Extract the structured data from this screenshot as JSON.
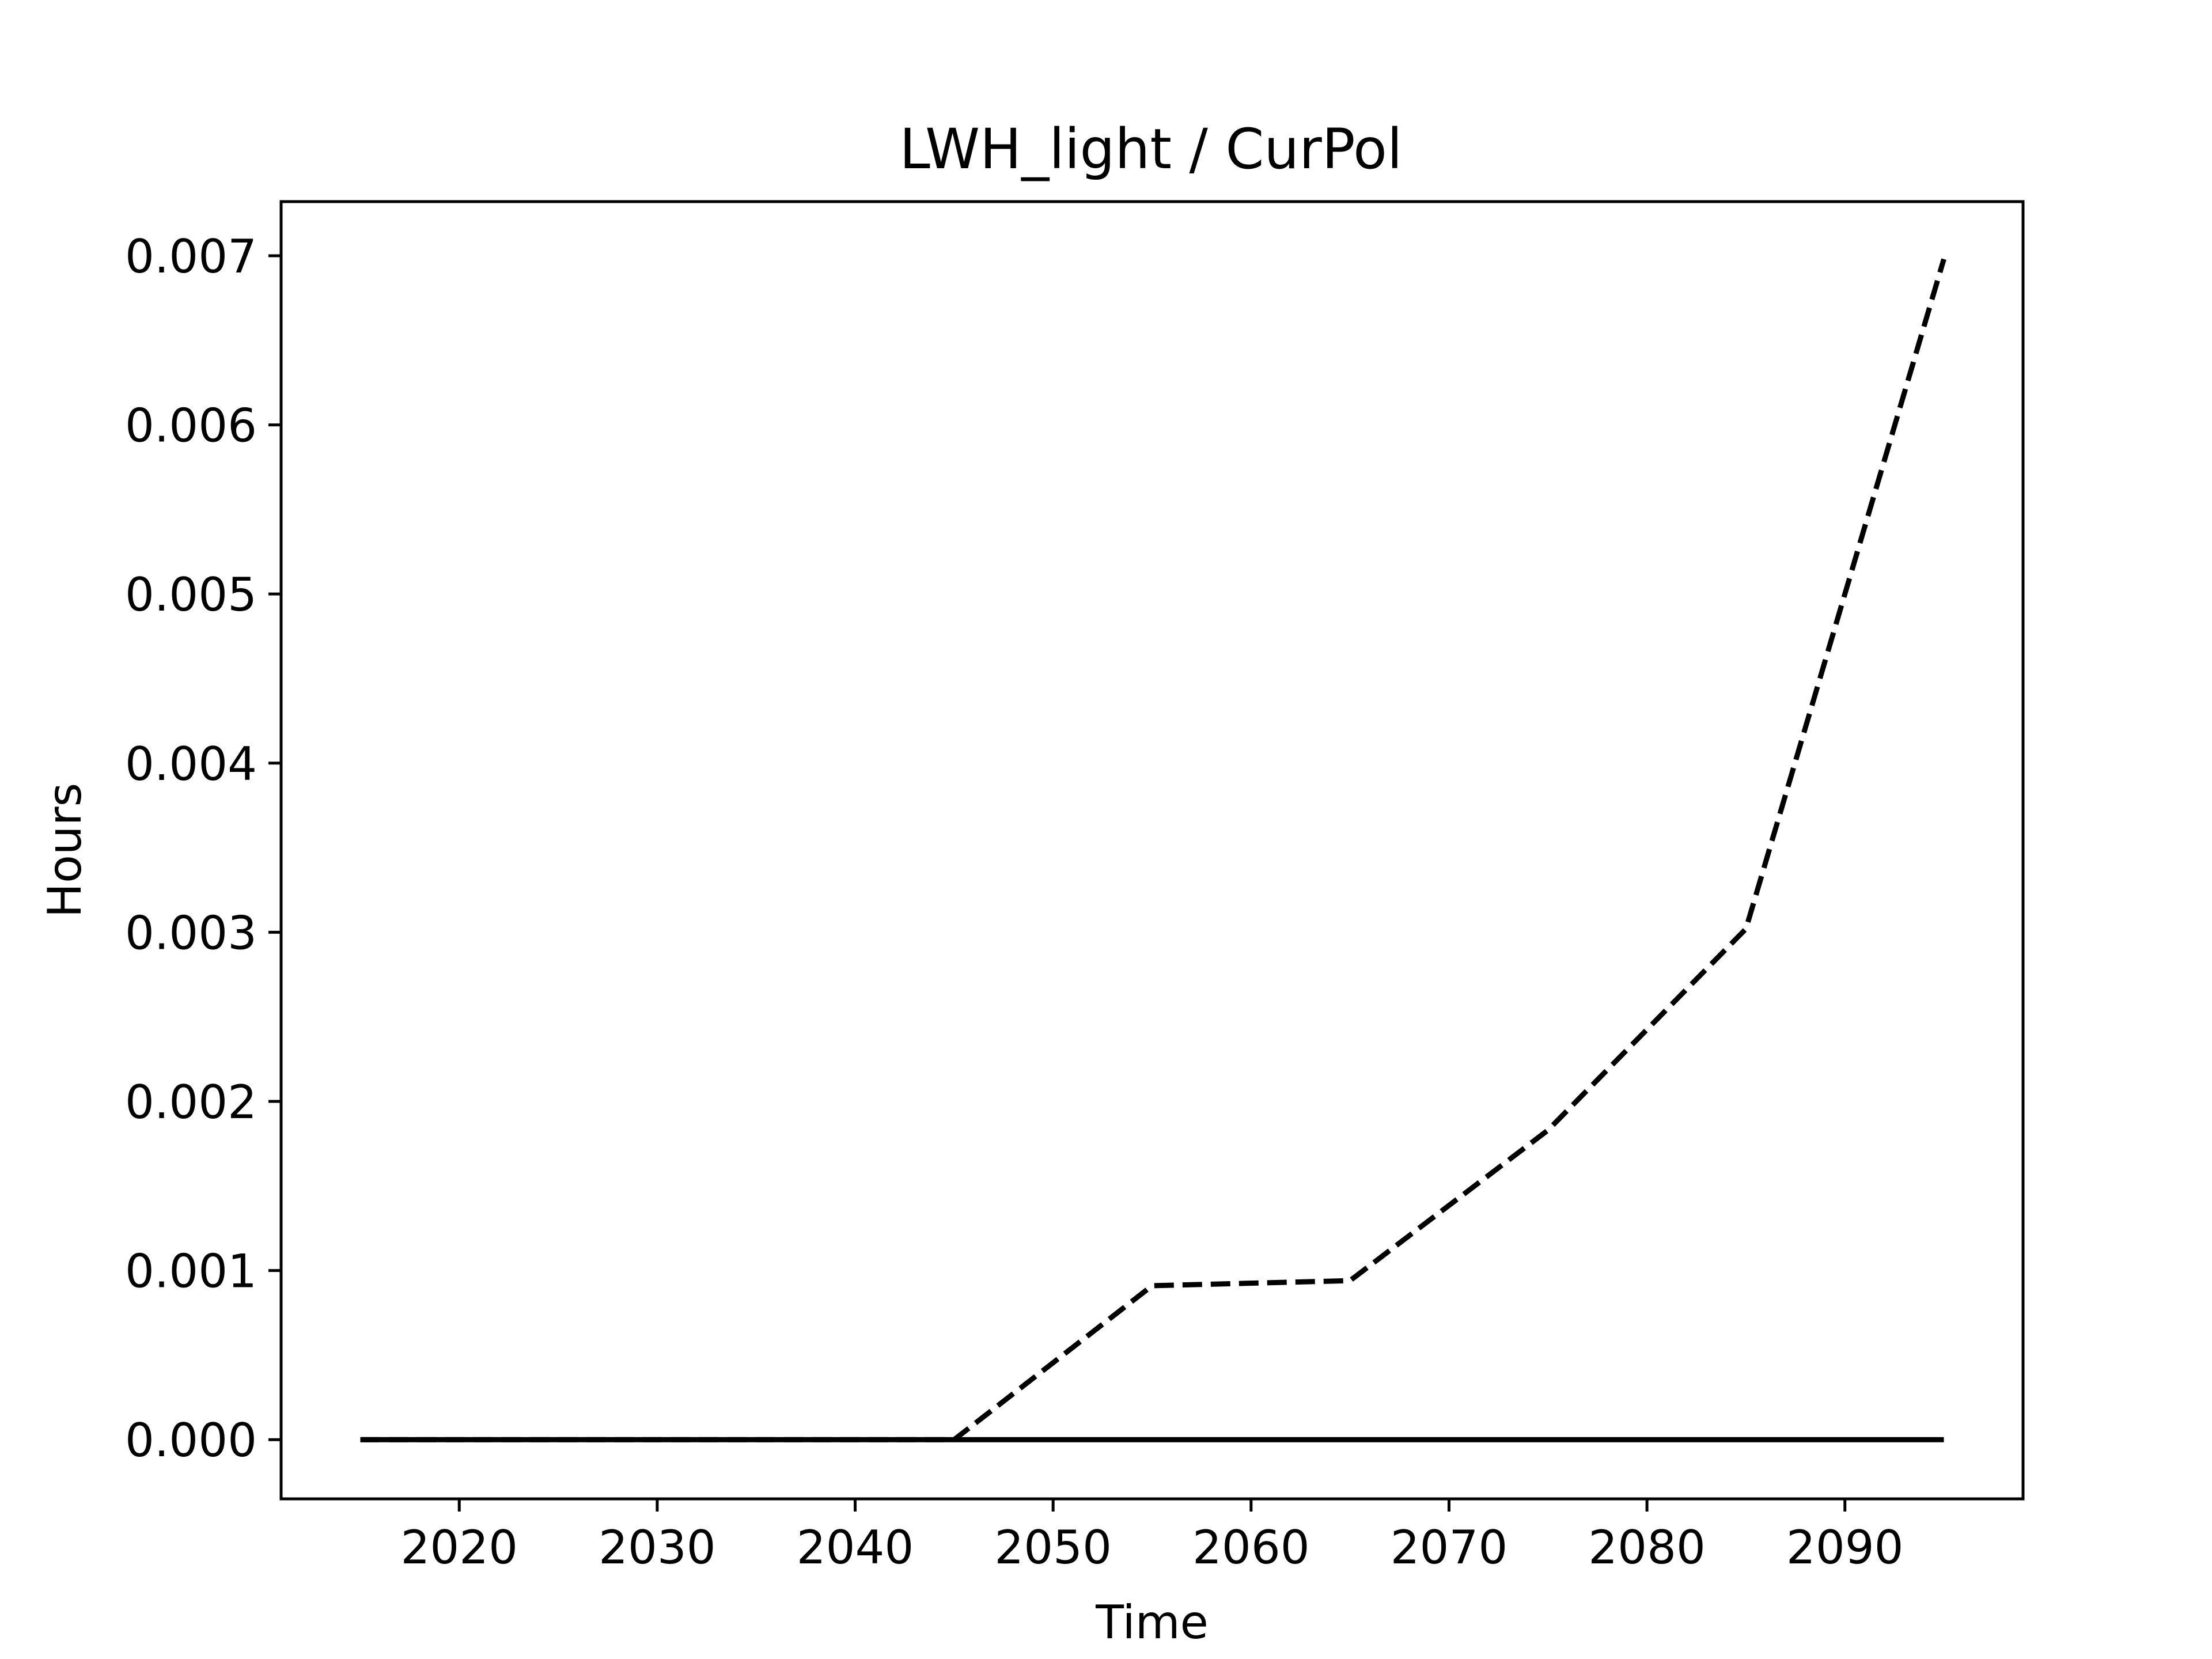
{
  "chart_data": {
    "type": "line",
    "title": "LWH_light / CurPol",
    "xlabel": "Time",
    "ylabel": "Hours",
    "xlim": [
      2011,
      2099
    ],
    "ylim": [
      -0.00035,
      0.00732
    ],
    "xticks": [
      2020,
      2030,
      2040,
      2050,
      2060,
      2070,
      2080,
      2090
    ],
    "yticks": [
      0.0,
      0.001,
      0.002,
      0.003,
      0.004,
      0.005,
      0.006,
      0.007
    ],
    "ytick_labels": [
      "0.000",
      "0.001",
      "0.002",
      "0.003",
      "0.004",
      "0.005",
      "0.006",
      "0.007"
    ],
    "grid": false,
    "series": [
      {
        "style": "dashed",
        "color": "#000000",
        "x": [
          2015,
          2025,
          2035,
          2045,
          2055,
          2065,
          2075,
          2085,
          2095
        ],
        "values": [
          0.0,
          0.0,
          0.0,
          0.0,
          0.00091,
          0.00094,
          0.00183,
          0.00302,
          0.00698
        ]
      },
      {
        "style": "solid",
        "color": "#000000",
        "x": [
          2015,
          2025,
          2035,
          2045,
          2055,
          2065,
          2075,
          2085,
          2095
        ],
        "values": [
          0.0,
          0.0,
          0.0,
          0.0,
          0.0,
          0.0,
          0.0,
          0.0,
          0.0
        ]
      }
    ]
  }
}
